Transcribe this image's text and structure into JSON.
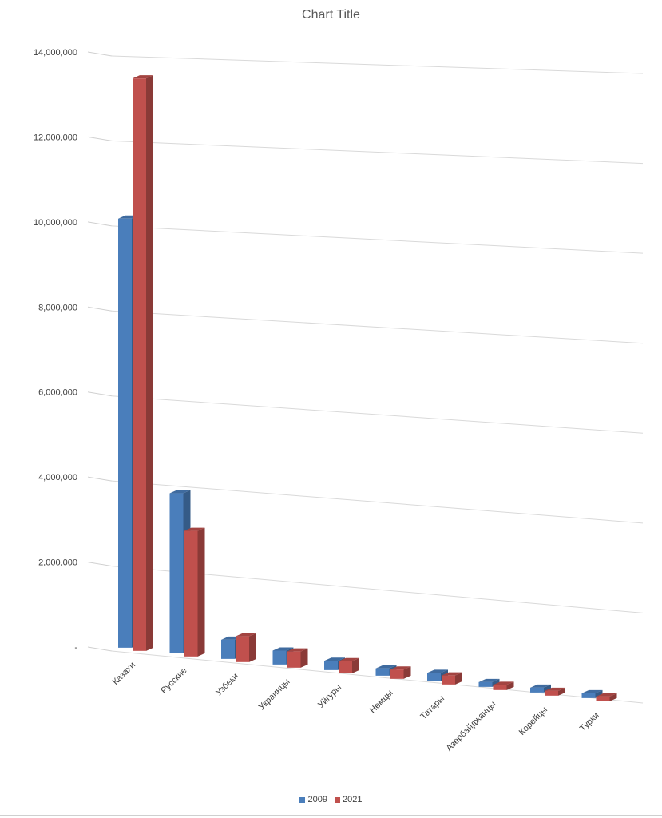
{
  "chart_data": {
    "type": "bar",
    "title": "Chart Title",
    "categories": [
      "Казахи",
      "Русские",
      "Узбеки",
      "Украинцы",
      "Уйгуры",
      "Немцы",
      "Татары",
      "Азербайджанцы",
      "Корейцы",
      "Турки"
    ],
    "series": [
      {
        "name": "2009",
        "values": [
          10100000,
          3790000,
          456000,
          333000,
          224000,
          178000,
          204000,
          85000,
          100000,
          97000
        ],
        "color": "#4a7ebb"
      },
      {
        "name": "2021",
        "values": [
          13500000,
          2980000,
          614000,
          387000,
          290000,
          226000,
          218000,
          128000,
          118000,
          117000
        ],
        "color": "#c0504d"
      }
    ],
    "yticks": [
      "-",
      "2,000,000",
      "4,000,000",
      "6,000,000",
      "8,000,000",
      "10,000,000",
      "12,000,000",
      "14,000,000"
    ],
    "ylim": [
      0,
      14000000
    ],
    "grid": true,
    "legend_position": "bottom"
  }
}
